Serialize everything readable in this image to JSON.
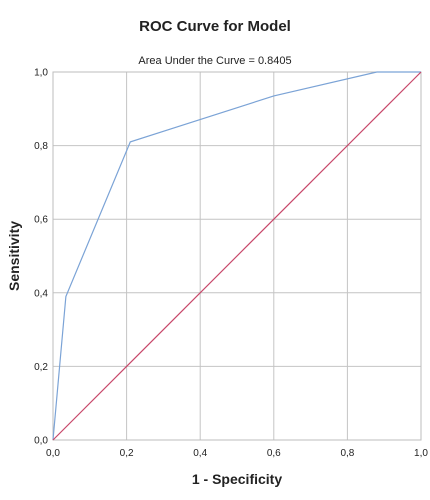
{
  "chart_data": {
    "type": "line",
    "title": "ROC Curve for Model",
    "subtitle": "Area Under the Curve = 0.8405",
    "xlabel": "1 - Specificity",
    "ylabel": "Sensitivity",
    "xlim": [
      0,
      1
    ],
    "ylim": [
      0,
      1
    ],
    "xticks": [
      "0,0",
      "0,2",
      "0,4",
      "0,6",
      "0,8",
      "1,0"
    ],
    "yticks": [
      "0,0",
      "0,2",
      "0,4",
      "0,6",
      "0,8",
      "1,0"
    ],
    "grid": true,
    "series": [
      {
        "color": "#7ba3d6",
        "x": [
          0.0,
          0.035,
          0.21,
          0.6,
          0.88,
          1.0
        ],
        "y": [
          0.0,
          0.39,
          0.81,
          0.935,
          1.0,
          1.0
        ]
      },
      {
        "color": "#c8486a",
        "x": [
          0.0,
          1.0
        ],
        "y": [
          0.0,
          1.0
        ]
      }
    ]
  }
}
